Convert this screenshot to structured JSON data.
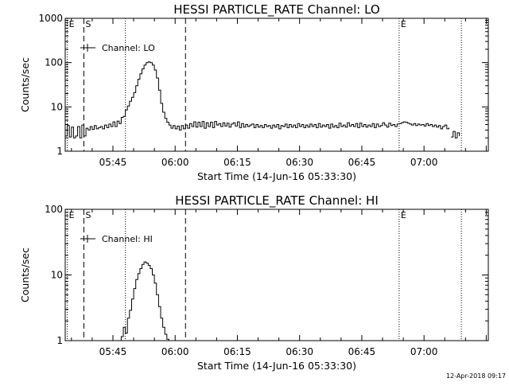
{
  "footer": {
    "timestamp": "12-Apr-2018 09:17"
  },
  "chart_data": [
    {
      "type": "line",
      "title": "HESSI PARTICLE_RATE Channel: LO",
      "xlabel": "Start Time (14-Jun-16 05:33:30)",
      "ylabel": "Counts/sec",
      "yscale": "log",
      "ylim": [
        1,
        1000
      ],
      "xlim": [
        "05:33:30",
        "07:15:30"
      ],
      "xticks": [
        "05:45",
        "06:00",
        "06:15",
        "06:30",
        "06:45",
        "07:00"
      ],
      "yticks": [
        "1",
        "10",
        "100",
        "1000"
      ],
      "legend": {
        "position": "top-left",
        "entries": [
          "Channel: LO"
        ]
      },
      "markers": [
        {
          "label": "E",
          "time": "05:34:00",
          "style": "dotted"
        },
        {
          "label": "S",
          "time": "05:38:00",
          "style": "dashed"
        },
        {
          "label": "",
          "time": "05:48:00",
          "style": "dotted"
        },
        {
          "label": "",
          "time": "06:02:30",
          "style": "dashed"
        },
        {
          "label": "E",
          "time": "06:54:00",
          "style": "dotted"
        },
        {
          "label": "",
          "time": "07:09:00",
          "style": "dotted"
        }
      ],
      "series": [
        {
          "name": "Channel: LO",
          "segments": [
            {
              "x": [
                "05:33:30",
                "05:34:00",
                "05:34:30",
                "05:35:00",
                "05:35:30",
                "05:36:00",
                "05:36:30",
                "05:37:00",
                "05:37:30",
                "05:38:00",
                "05:38:30",
                "05:39:00",
                "05:39:30",
                "05:40:00",
                "05:40:30",
                "05:41:00",
                "05:41:30",
                "05:42:00",
                "05:42:30",
                "05:43:00",
                "05:43:30",
                "05:44:00",
                "05:44:30",
                "05:45:00",
                "05:45:30",
                "05:46:00",
                "05:46:30",
                "05:47:00",
                "05:47:30",
                "05:48:00",
                "05:48:30",
                "05:49:00",
                "05:49:30",
                "05:50:00",
                "05:50:30",
                "05:51:00",
                "05:51:30",
                "05:52:00",
                "05:52:30",
                "05:53:00",
                "05:53:30",
                "05:54:00",
                "05:54:30",
                "05:55:00",
                "05:55:30",
                "05:56:00",
                "05:56:30",
                "05:57:00",
                "05:57:30",
                "05:58:00",
                "05:58:30",
                "05:59:00",
                "05:59:30",
                "06:00:00",
                "06:00:30",
                "06:01:00",
                "06:01:30",
                "06:02:00",
                "06:02:30",
                "06:03:00",
                "06:03:30",
                "06:04:00",
                "06:04:30",
                "06:05:00",
                "06:05:30",
                "06:06:00",
                "06:06:30",
                "06:07:00",
                "06:07:30",
                "06:08:00",
                "06:08:30",
                "06:09:00",
                "06:09:30",
                "06:10:00",
                "06:10:30",
                "06:11:00",
                "06:11:30",
                "06:12:00",
                "06:12:30",
                "06:13:00",
                "06:13:30",
                "06:14:00",
                "06:14:30",
                "06:15:00",
                "06:15:30",
                "06:16:00",
                "06:16:30",
                "06:17:00",
                "06:17:30",
                "06:18:00",
                "06:18:30",
                "06:19:00",
                "06:19:30",
                "06:20:00",
                "06:20:30",
                "06:21:00",
                "06:21:30",
                "06:22:00",
                "06:22:30",
                "06:23:00",
                "06:23:30",
                "06:24:00",
                "06:24:30",
                "06:25:00",
                "06:25:30",
                "06:26:00",
                "06:26:30",
                "06:27:00",
                "06:27:30",
                "06:28:00",
                "06:28:30",
                "06:29:00",
                "06:29:30",
                "06:30:00",
                "06:30:30",
                "06:31:00",
                "06:31:30",
                "06:32:00",
                "06:32:30",
                "06:33:00",
                "06:33:30",
                "06:34:00",
                "06:34:30",
                "06:35:00",
                "06:35:30",
                "06:36:00",
                "06:36:30",
                "06:37:00",
                "06:37:30",
                "06:38:00",
                "06:38:30",
                "06:39:00",
                "06:39:30",
                "06:40:00",
                "06:40:30",
                "06:41:00",
                "06:41:30",
                "06:42:00",
                "06:42:30",
                "06:43:00",
                "06:43:30",
                "06:44:00",
                "06:44:30",
                "06:45:00",
                "06:45:30",
                "06:46:00",
                "06:46:30",
                "06:47:00",
                "06:47:30",
                "06:48:00",
                "06:48:30",
                "06:49:00",
                "06:49:30",
                "06:50:00",
                "06:50:30",
                "06:51:00",
                "06:51:30",
                "06:52:00",
                "06:52:30",
                "06:53:00",
                "06:53:30",
                "06:54:00",
                "06:54:30",
                "06:55:00",
                "06:55:30",
                "06:56:00",
                "06:56:30",
                "06:57:00",
                "06:57:30",
                "06:58:00",
                "06:58:30",
                "06:59:00",
                "06:59:30",
                "07:00:00",
                "07:00:30",
                "07:01:00",
                "07:01:30",
                "07:02:00",
                "07:02:30",
                "07:03:00",
                "07:03:30",
                "07:04:00",
                "07:04:30",
                "07:05:00",
                "07:05:30",
                "07:06:00"
              ],
              "y": [
                2.2,
                3.8,
                2.1,
                3.5,
                2.0,
                2.2,
                3.6,
                2.0,
                3.9,
                2.2,
                3.3,
                3.0,
                3.6,
                3.1,
                3.8,
                3.2,
                3.4,
                3.6,
                3.2,
                3.9,
                3.4,
                4.1,
                3.6,
                4.6,
                3.6,
                4.8,
                4.2,
                5.8,
                6.1,
                8.5,
                10.5,
                13.5,
                16.5,
                21,
                30,
                42,
                56,
                72,
                88,
                100,
                104,
                100,
                88,
                68,
                45,
                24,
                12,
                7.6,
                5.5,
                4.5,
                3.9,
                3.3,
                3.8,
                3.2,
                3.7,
                3.0,
                3.8,
                3.2,
                3.9,
                3.3,
                4.2,
                3.6,
                4.6,
                3.5,
                4.5,
                3.6,
                4.7,
                3.3,
                4.4,
                3.6,
                4.5,
                3.4,
                4.7,
                3.9,
                4.2,
                3.6,
                4.4,
                3.7,
                4.3,
                3.5,
                4.1,
                4.4,
                3.7,
                4.6,
                3.4,
                4.2,
                3.5,
                4.0,
                3.6,
                3.9,
                4.1,
                3.4,
                4.0,
                3.5,
                3.8,
                3.4,
                4.0,
                3.6,
                3.8,
                3.3,
                3.9,
                3.5,
                4.0,
                3.2,
                3.8,
                3.6,
                4.1,
                3.4,
                4.0,
                3.5,
                3.9,
                3.4,
                4.2,
                3.6,
                4.0,
                3.4,
                3.9,
                3.5,
                4.1,
                3.6,
                4.0,
                3.4,
                4.2,
                3.5,
                3.9,
                3.6,
                4.0,
                3.3,
                4.1,
                3.5,
                3.8,
                3.4,
                4.3,
                3.6,
                3.9,
                3.5,
                4.4,
                3.7,
                4.0,
                3.6,
                4.2,
                3.4,
                4.3,
                3.6,
                4.0,
                3.5,
                3.9,
                3.6,
                4.2,
                3.4,
                4.1,
                3.6,
                3.8,
                4.4,
                3.9,
                3.5,
                4.3,
                3.8,
                4.0,
                3.6,
                4.1,
                4.2,
                4.4,
                4.6,
                4.5,
                4.3,
                4.1,
                3.9,
                4.2,
                3.8,
                4.1,
                3.9,
                4.0,
                3.7,
                4.2,
                3.8,
                4.0,
                3.6,
                3.9,
                3.5,
                3.8,
                3.2,
                3.6,
                3.9,
                3.2,
                3.4
              ]
            },
            {
              "x": [
                "07:06:30",
                "07:07:00",
                "07:07:30",
                "07:08:00",
                "07:08:30"
              ],
              "y": [
                2.1,
                2.8,
                2.0,
                2.6,
                2.2
              ]
            }
          ]
        }
      ]
    },
    {
      "type": "line",
      "title": "HESSI PARTICLE_RATE Channel: HI",
      "xlabel": "Start Time (14-Jun-16 05:33:30)",
      "ylabel": "Counts/sec",
      "yscale": "log",
      "ylim": [
        1,
        100
      ],
      "xlim": [
        "05:33:30",
        "07:15:30"
      ],
      "xticks": [
        "05:45",
        "06:00",
        "06:15",
        "06:30",
        "06:45",
        "07:00"
      ],
      "yticks": [
        "1",
        "10",
        "100"
      ],
      "legend": {
        "position": "top-left",
        "entries": [
          "Channel: HI"
        ]
      },
      "markers": [
        {
          "label": "E",
          "time": "05:34:00",
          "style": "dotted"
        },
        {
          "label": "S",
          "time": "05:38:00",
          "style": "dashed"
        },
        {
          "label": "",
          "time": "05:48:00",
          "style": "dotted"
        },
        {
          "label": "",
          "time": "06:02:30",
          "style": "dashed"
        },
        {
          "label": "E",
          "time": "06:54:00",
          "style": "dotted"
        },
        {
          "label": "",
          "time": "07:09:00",
          "style": "dotted"
        }
      ],
      "series": [
        {
          "name": "Channel: HI",
          "segments": [
            {
              "x": [
                "05:46:30",
                "05:47:00",
                "05:47:30",
                "05:48:00",
                "05:48:30",
                "05:49:00",
                "05:49:30",
                "05:50:00",
                "05:50:30",
                "05:51:00",
                "05:51:30",
                "05:52:00",
                "05:52:30",
                "05:53:00",
                "05:53:30",
                "05:54:00",
                "05:54:30",
                "05:55:00",
                "05:55:30",
                "05:56:00",
                "05:56:30",
                "05:57:00",
                "05:57:30",
                "05:58:00",
                "05:58:30"
              ],
              "y": [
                0.9,
                1.15,
                1.6,
                1.3,
                2.2,
                2.9,
                4.3,
                6.2,
                8.5,
                10.5,
                12.5,
                14.5,
                15.8,
                15.2,
                14.0,
                12.5,
                10.0,
                7.5,
                5.0,
                3.3,
                2.2,
                1.6,
                1.25,
                1.05,
                0.85
              ]
            }
          ]
        }
      ]
    }
  ]
}
